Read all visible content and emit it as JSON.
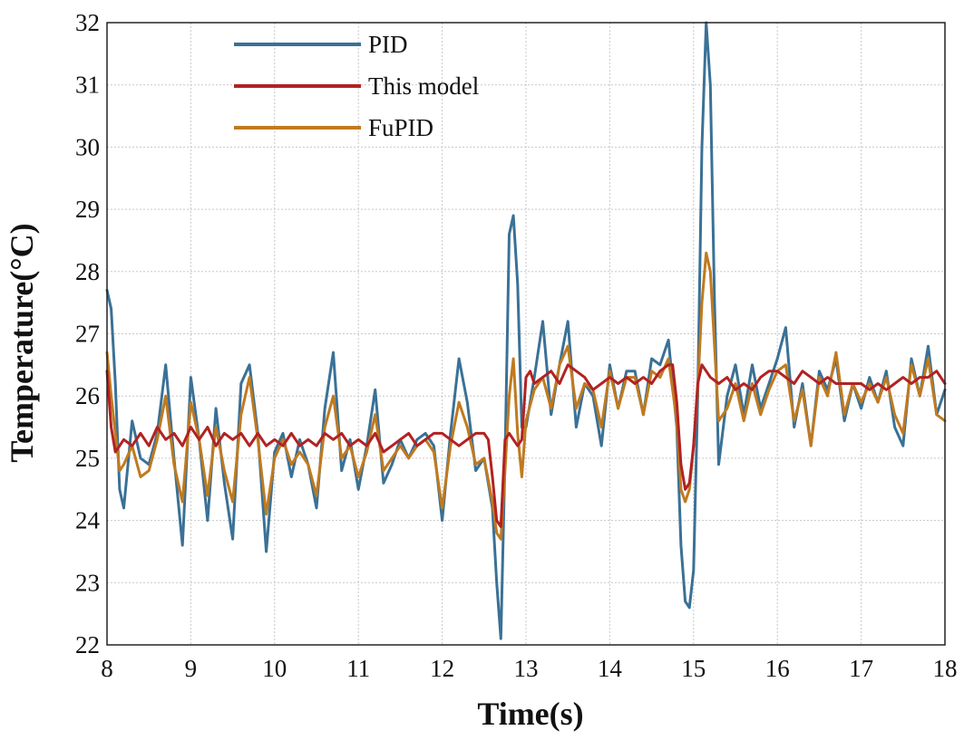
{
  "chart_data": {
    "type": "line",
    "title": "",
    "xlabel": "Time(s)",
    "ylabel": "Temperature(°C)",
    "xlim": [
      8,
      18
    ],
    "ylim": [
      22,
      32
    ],
    "xticks": [
      8,
      9,
      10,
      11,
      12,
      13,
      14,
      15,
      16,
      17,
      18
    ],
    "yticks": [
      22,
      23,
      24,
      25,
      26,
      27,
      28,
      29,
      30,
      31,
      32
    ],
    "grid": true,
    "legend_position": "top-left",
    "series": [
      {
        "name": "PID",
        "color": "#3a7196",
        "x": [
          8.0,
          8.05,
          8.1,
          8.15,
          8.2,
          8.3,
          8.4,
          8.5,
          8.6,
          8.7,
          8.8,
          8.9,
          9.0,
          9.1,
          9.2,
          9.3,
          9.4,
          9.5,
          9.6,
          9.7,
          9.8,
          9.9,
          10.0,
          10.1,
          10.2,
          10.3,
          10.4,
          10.5,
          10.6,
          10.7,
          10.8,
          10.9,
          11.0,
          11.1,
          11.2,
          11.3,
          11.4,
          11.5,
          11.6,
          11.7,
          11.8,
          11.9,
          12.0,
          12.1,
          12.2,
          12.3,
          12.4,
          12.5,
          12.6,
          12.65,
          12.7,
          12.75,
          12.8,
          12.85,
          12.9,
          12.95,
          13.0,
          13.1,
          13.2,
          13.3,
          13.4,
          13.5,
          13.6,
          13.7,
          13.8,
          13.9,
          14.0,
          14.1,
          14.2,
          14.3,
          14.4,
          14.5,
          14.6,
          14.7,
          14.8,
          14.85,
          14.9,
          14.95,
          15.0,
          15.05,
          15.1,
          15.15,
          15.2,
          15.25,
          15.3,
          15.4,
          15.5,
          15.6,
          15.7,
          15.8,
          15.9,
          16.0,
          16.1,
          16.2,
          16.3,
          16.4,
          16.5,
          16.6,
          16.7,
          16.8,
          16.9,
          17.0,
          17.1,
          17.2,
          17.3,
          17.4,
          17.5,
          17.6,
          17.7,
          17.8,
          17.9,
          18.0
        ],
        "values": [
          27.7,
          27.4,
          26.2,
          24.5,
          24.2,
          25.6,
          25.0,
          24.9,
          25.4,
          26.5,
          25.0,
          23.6,
          26.3,
          25.3,
          24.0,
          25.8,
          24.6,
          23.7,
          26.2,
          26.5,
          25.4,
          23.5,
          25.1,
          25.4,
          24.7,
          25.3,
          24.9,
          24.2,
          25.8,
          26.7,
          24.8,
          25.3,
          24.5,
          25.2,
          26.1,
          24.6,
          24.9,
          25.3,
          25.0,
          25.3,
          25.4,
          25.2,
          24.0,
          25.4,
          26.6,
          25.9,
          24.8,
          25.0,
          24.2,
          23.0,
          22.1,
          25.0,
          28.6,
          28.9,
          27.8,
          25.5,
          25.5,
          26.3,
          27.2,
          25.7,
          26.5,
          27.2,
          25.5,
          26.2,
          26.0,
          25.2,
          26.5,
          25.8,
          26.4,
          26.4,
          25.7,
          26.6,
          26.5,
          26.9,
          25.5,
          23.6,
          22.7,
          22.6,
          23.2,
          26.0,
          30.0,
          32.0,
          31.0,
          27.5,
          24.9,
          26.0,
          26.5,
          25.7,
          26.5,
          25.8,
          26.2,
          26.6,
          27.1,
          25.5,
          26.2,
          25.2,
          26.4,
          26.1,
          26.6,
          25.6,
          26.2,
          25.8,
          26.3,
          25.9,
          26.4,
          25.5,
          25.2,
          26.6,
          26.0,
          26.8,
          25.7,
          26.1
        ]
      },
      {
        "name": "This model",
        "color": "#b22222",
        "x": [
          8.0,
          8.05,
          8.1,
          8.2,
          8.3,
          8.4,
          8.5,
          8.6,
          8.7,
          8.8,
          8.9,
          9.0,
          9.1,
          9.2,
          9.3,
          9.4,
          9.5,
          9.6,
          9.7,
          9.8,
          9.9,
          10.0,
          10.1,
          10.2,
          10.3,
          10.4,
          10.5,
          10.6,
          10.7,
          10.8,
          10.9,
          11.0,
          11.1,
          11.2,
          11.3,
          11.4,
          11.5,
          11.6,
          11.7,
          11.8,
          11.9,
          12.0,
          12.1,
          12.2,
          12.3,
          12.4,
          12.5,
          12.55,
          12.6,
          12.65,
          12.7,
          12.75,
          12.8,
          12.85,
          12.9,
          12.95,
          13.0,
          13.05,
          13.1,
          13.2,
          13.3,
          13.4,
          13.5,
          13.6,
          13.7,
          13.8,
          13.9,
          14.0,
          14.1,
          14.2,
          14.3,
          14.4,
          14.5,
          14.6,
          14.7,
          14.75,
          14.8,
          14.85,
          14.9,
          14.95,
          15.0,
          15.05,
          15.1,
          15.15,
          15.2,
          15.3,
          15.4,
          15.5,
          15.6,
          15.7,
          15.8,
          15.9,
          16.0,
          16.1,
          16.2,
          16.3,
          16.4,
          16.5,
          16.6,
          16.7,
          16.8,
          16.9,
          17.0,
          17.1,
          17.2,
          17.3,
          17.4,
          17.5,
          17.6,
          17.7,
          17.8,
          17.9,
          18.0
        ],
        "values": [
          26.4,
          25.5,
          25.1,
          25.3,
          25.2,
          25.4,
          25.2,
          25.5,
          25.3,
          25.4,
          25.2,
          25.5,
          25.3,
          25.5,
          25.2,
          25.4,
          25.3,
          25.4,
          25.2,
          25.4,
          25.2,
          25.3,
          25.2,
          25.4,
          25.2,
          25.3,
          25.2,
          25.4,
          25.3,
          25.4,
          25.2,
          25.3,
          25.2,
          25.4,
          25.1,
          25.2,
          25.3,
          25.4,
          25.2,
          25.3,
          25.4,
          25.4,
          25.3,
          25.2,
          25.3,
          25.4,
          25.4,
          25.3,
          24.7,
          24.0,
          23.9,
          25.3,
          25.4,
          25.3,
          25.2,
          25.3,
          26.3,
          26.4,
          26.2,
          26.3,
          26.4,
          26.2,
          26.5,
          26.4,
          26.3,
          26.1,
          26.2,
          26.3,
          26.2,
          26.3,
          26.2,
          26.3,
          26.2,
          26.4,
          26.5,
          26.5,
          25.9,
          24.9,
          24.5,
          24.6,
          25.2,
          26.2,
          26.5,
          26.4,
          26.3,
          26.2,
          26.3,
          26.1,
          26.2,
          26.1,
          26.3,
          26.4,
          26.4,
          26.3,
          26.2,
          26.4,
          26.3,
          26.2,
          26.3,
          26.2,
          26.2,
          26.2,
          26.2,
          26.1,
          26.2,
          26.1,
          26.2,
          26.3,
          26.2,
          26.3,
          26.3,
          26.4,
          26.2
        ]
      },
      {
        "name": "FuPID",
        "color": "#c07a1f",
        "x": [
          8.0,
          8.05,
          8.1,
          8.15,
          8.2,
          8.3,
          8.4,
          8.5,
          8.6,
          8.7,
          8.8,
          8.9,
          9.0,
          9.1,
          9.2,
          9.3,
          9.4,
          9.5,
          9.6,
          9.7,
          9.8,
          9.9,
          10.0,
          10.1,
          10.2,
          10.3,
          10.4,
          10.5,
          10.6,
          10.7,
          10.8,
          10.9,
          11.0,
          11.1,
          11.2,
          11.3,
          11.4,
          11.5,
          11.6,
          11.7,
          11.8,
          11.9,
          12.0,
          12.1,
          12.2,
          12.3,
          12.4,
          12.5,
          12.6,
          12.65,
          12.7,
          12.75,
          12.8,
          12.85,
          12.9,
          12.95,
          13.0,
          13.1,
          13.2,
          13.3,
          13.4,
          13.5,
          13.6,
          13.7,
          13.8,
          13.9,
          14.0,
          14.1,
          14.2,
          14.3,
          14.4,
          14.5,
          14.6,
          14.7,
          14.8,
          14.85,
          14.9,
          14.95,
          15.0,
          15.05,
          15.1,
          15.15,
          15.2,
          15.25,
          15.3,
          15.4,
          15.5,
          15.6,
          15.7,
          15.8,
          15.9,
          16.0,
          16.1,
          16.2,
          16.3,
          16.4,
          16.5,
          16.6,
          16.7,
          16.8,
          16.9,
          17.0,
          17.1,
          17.2,
          17.3,
          17.4,
          17.5,
          17.6,
          17.7,
          17.8,
          17.9,
          18.0
        ],
        "values": [
          26.7,
          26.0,
          25.4,
          24.8,
          24.9,
          25.2,
          24.7,
          24.8,
          25.3,
          26.0,
          24.9,
          24.3,
          25.9,
          25.3,
          24.4,
          25.5,
          24.8,
          24.3,
          25.7,
          26.3,
          25.3,
          24.1,
          25.0,
          25.3,
          24.9,
          25.1,
          24.9,
          24.4,
          25.5,
          26.0,
          25.0,
          25.2,
          24.7,
          25.1,
          25.7,
          24.8,
          25.0,
          25.2,
          25.0,
          25.2,
          25.3,
          25.1,
          24.2,
          25.2,
          25.9,
          25.5,
          24.9,
          25.0,
          24.3,
          23.8,
          23.7,
          24.8,
          26.0,
          26.6,
          25.4,
          24.7,
          25.6,
          26.1,
          26.3,
          25.8,
          26.5,
          26.8,
          25.8,
          26.2,
          26.1,
          25.5,
          26.4,
          25.8,
          26.3,
          26.3,
          25.7,
          26.4,
          26.3,
          26.6,
          25.6,
          24.5,
          24.3,
          24.5,
          25.2,
          26.1,
          27.5,
          28.3,
          28.0,
          26.8,
          25.6,
          25.8,
          26.2,
          25.6,
          26.2,
          25.7,
          26.1,
          26.4,
          26.5,
          25.6,
          26.1,
          25.2,
          26.3,
          26.0,
          26.7,
          25.7,
          26.2,
          25.9,
          26.2,
          25.9,
          26.3,
          25.7,
          25.4,
          26.5,
          26.0,
          26.6,
          25.7,
          25.6
        ]
      }
    ]
  }
}
